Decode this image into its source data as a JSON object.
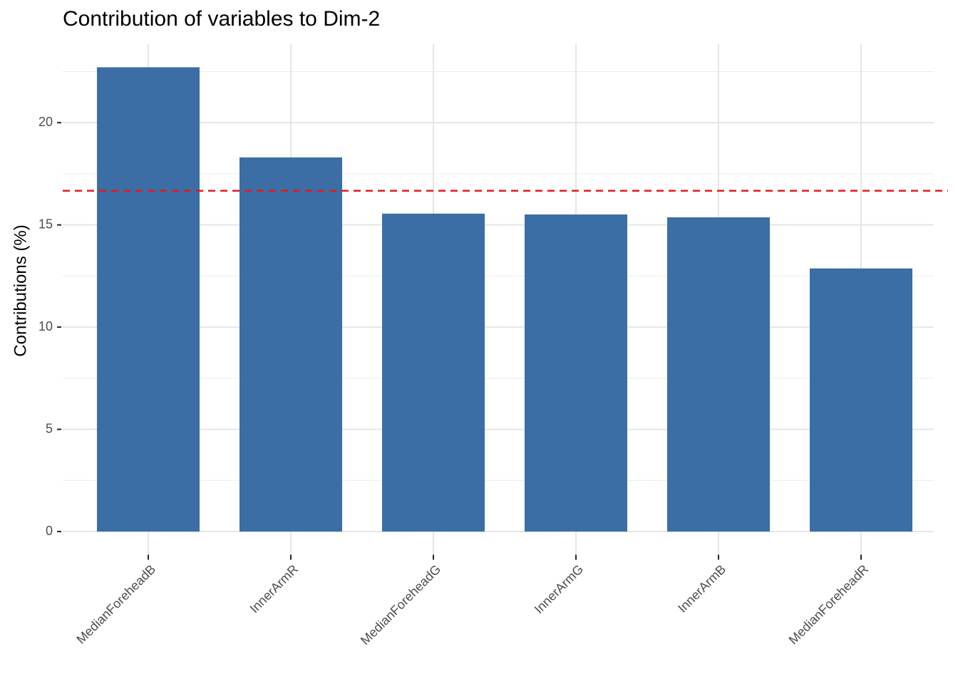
{
  "chart_data": {
    "type": "bar",
    "title": "Contribution of variables to Dim-2",
    "y_label": "Contributions (%)",
    "categories": [
      "MedianForeheadB",
      "InnerArmR",
      "MedianForeheadG",
      "InnerArmG",
      "InnerArmB",
      "MedianForeheadR"
    ],
    "values": [
      22.71,
      18.3,
      15.55,
      15.51,
      15.37,
      12.87
    ],
    "color": "#3a6ea5",
    "reference_line": {
      "value": 16.67,
      "color": "#e41a1c"
    },
    "ylim": [
      -1.135,
      23.84
    ],
    "yticks": [
      0,
      5,
      10,
      15,
      20
    ],
    "grid": true
  }
}
